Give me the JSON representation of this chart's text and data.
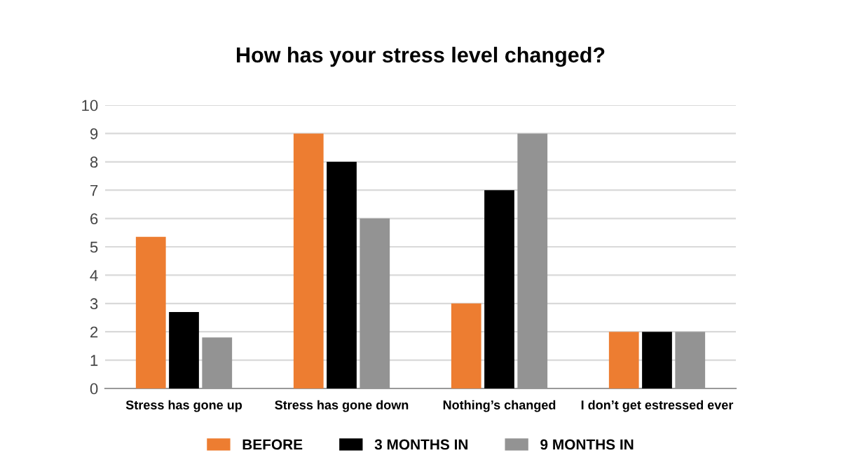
{
  "chart_data": {
    "type": "bar",
    "title": "How has your stress level changed?",
    "categories": [
      "Stress has gone up",
      "Stress has gone down",
      "Nothing’s changed",
      "I don’t get estressed ever"
    ],
    "series": [
      {
        "name": "BEFORE",
        "color": "#ed7d31",
        "values": [
          5.35,
          9,
          3,
          2
        ]
      },
      {
        "name": "3 MONTHS IN",
        "color": "#000000",
        "values": [
          2.7,
          8,
          7,
          2
        ]
      },
      {
        "name": "9 MONTHS IN",
        "color": "#939393",
        "values": [
          1.8,
          6,
          9,
          2
        ]
      }
    ],
    "ylim": [
      0,
      10
    ],
    "yticks": [
      0,
      1,
      2,
      3,
      4,
      5,
      6,
      7,
      8,
      9,
      10
    ],
    "grid": "y",
    "legend": "bottom"
  }
}
